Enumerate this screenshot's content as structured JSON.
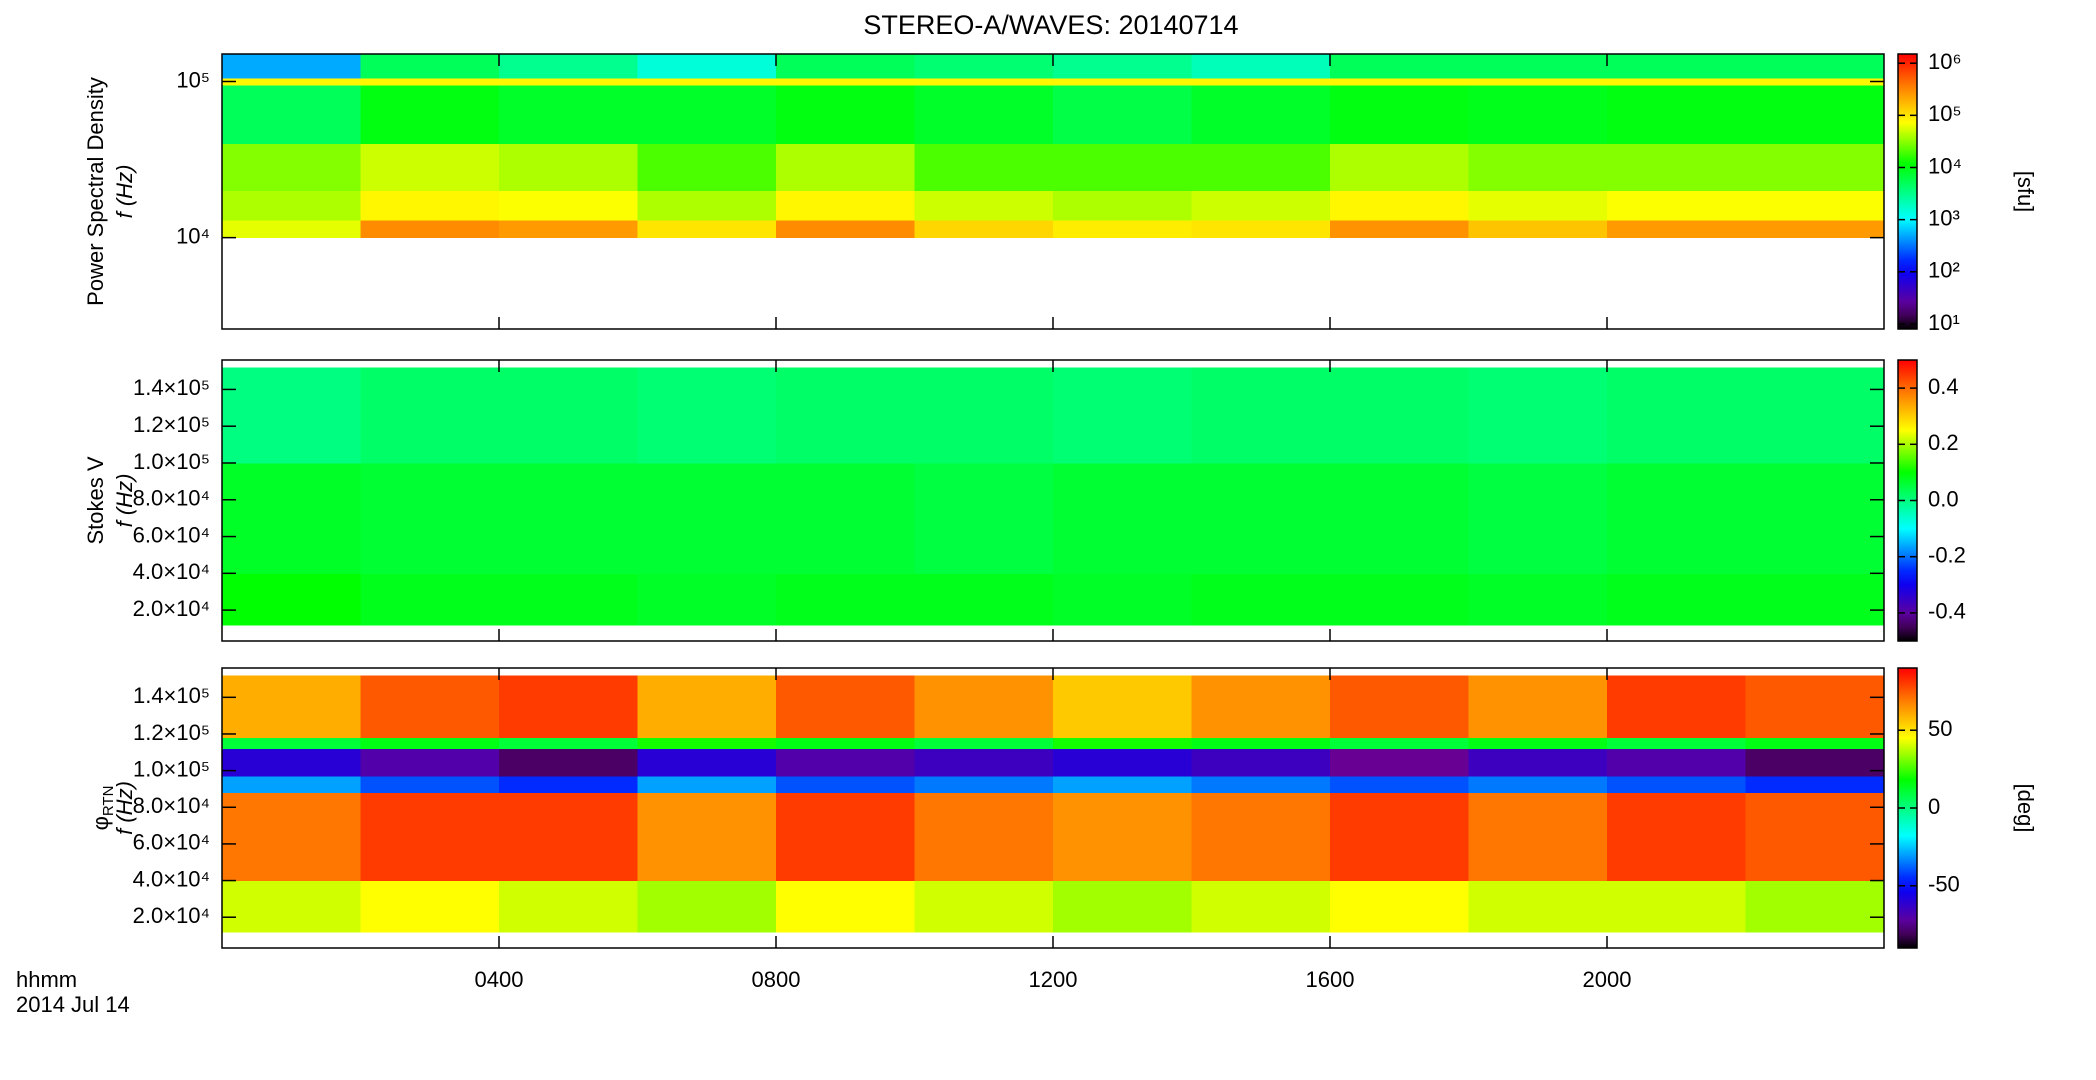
{
  "chart_data": [
    {
      "type": "heatmap",
      "title": "STEREO-A/WAVES: 20140714",
      "quantity": "Power Spectral Density",
      "ylabel": "f (Hz)",
      "yscale": "log",
      "ylim": [
        2600,
        150000
      ],
      "yticks": [
        {
          "value": 10000,
          "label": "10⁴"
        },
        {
          "value": 100000,
          "label": "10⁵"
        }
      ],
      "x_edges": [
        0,
        2,
        4,
        6,
        8,
        10,
        12,
        14,
        16,
        18,
        20,
        22,
        24
      ],
      "y_edges": [
        10000,
        13000,
        20000,
        40000,
        95000,
        105000,
        150000
      ],
      "z": [
        [
          60000,
          300000,
          250000,
          100000,
          300000,
          120000,
          90000,
          100000,
          280000,
          150000,
          250000,
          250000
        ],
        [
          40000,
          80000,
          70000,
          40000,
          80000,
          50000,
          40000,
          50000,
          80000,
          60000,
          70000,
          70000
        ],
        [
          30000,
          50000,
          40000,
          20000,
          40000,
          20000,
          20000,
          20000,
          40000,
          30000,
          30000,
          30000
        ],
        [
          5000,
          10000,
          8000,
          8000,
          10000,
          8000,
          6000,
          8000,
          10000,
          9000,
          10000,
          10000
        ],
        [
          80000,
          80000,
          80000,
          80000,
          80000,
          80000,
          80000,
          80000,
          80000,
          80000,
          80000,
          80000
        ],
        [
          500,
          5000,
          3000,
          1500,
          5000,
          4000,
          3000,
          2000,
          5000,
          5000,
          5000,
          5000
        ]
      ],
      "zscale": "log",
      "zlim": [
        8,
        1500000
      ],
      "zticks": [
        {
          "value": 10,
          "label": "10¹"
        },
        {
          "value": 100,
          "label": "10²"
        },
        {
          "value": 1000,
          "label": "10³"
        },
        {
          "value": 10000,
          "label": "10⁴"
        },
        {
          "value": 100000,
          "label": "10⁵"
        },
        {
          "value": 1000000,
          "label": "10⁶"
        }
      ],
      "zlabel": "[sfu]",
      "colormap": "rainbow"
    },
    {
      "type": "heatmap",
      "quantity": "Stokes V",
      "ylabel": "f (Hz)",
      "yscale": "linear",
      "ylim": [
        3200,
        156000
      ],
      "yticks": [
        {
          "value": 20000,
          "label": "2.0×10⁴"
        },
        {
          "value": 40000,
          "label": "4.0×10⁴"
        },
        {
          "value": 60000,
          "label": "6.0×10⁴"
        },
        {
          "value": 80000,
          "label": "8.0×10⁴"
        },
        {
          "value": 100000,
          "label": "1.0×10⁵"
        },
        {
          "value": 120000,
          "label": "1.2×10⁵"
        },
        {
          "value": 140000,
          "label": "1.4×10⁵"
        }
      ],
      "x_edges": [
        0,
        2,
        4,
        6,
        8,
        10,
        12,
        14,
        16,
        18,
        20,
        22,
        24
      ],
      "y_edges": [
        12000,
        40000,
        100000,
        152000
      ],
      "z": [
        [
          0.1,
          0.08,
          0.08,
          0.07,
          0.08,
          0.08,
          0.07,
          0.08,
          0.08,
          0.07,
          0.08,
          0.08
        ],
        [
          0.07,
          0.06,
          0.06,
          0.06,
          0.06,
          0.05,
          0.06,
          0.06,
          0.06,
          0.05,
          0.06,
          0.06
        ],
        [
          0.0,
          0.02,
          0.02,
          0.01,
          0.02,
          0.02,
          0.01,
          0.02,
          0.02,
          0.01,
          0.02,
          0.02
        ]
      ],
      "zscale": "linear",
      "zlim": [
        -0.5,
        0.5
      ],
      "zticks": [
        -0.4,
        -0.2,
        {
          "value": 0,
          "label": "0.0"
        },
        0.2,
        0.4
      ],
      "colormap": "rainbow"
    },
    {
      "type": "heatmap",
      "quantity": "φ",
      "quantity_subscript": "RTN",
      "ylabel": "f (Hz)",
      "yscale": "linear",
      "ylim": [
        3200,
        156000
      ],
      "yticks": [
        {
          "value": 20000,
          "label": "2.0×10⁴"
        },
        {
          "value": 40000,
          "label": "4.0×10⁴"
        },
        {
          "value": 60000,
          "label": "6.0×10⁴"
        },
        {
          "value": 80000,
          "label": "8.0×10⁴"
        },
        {
          "value": 100000,
          "label": "1.0×10⁵"
        },
        {
          "value": 120000,
          "label": "1.2×10⁵"
        },
        {
          "value": 140000,
          "label": "1.4×10⁵"
        }
      ],
      "xlim": [
        0,
        24
      ],
      "xticks": [
        {
          "value": 4,
          "label": "0400"
        },
        {
          "value": 8,
          "label": "0800"
        },
        {
          "value": 12,
          "label": "1200"
        },
        {
          "value": 16,
          "label": "1600"
        },
        {
          "value": 20,
          "label": "2000"
        }
      ],
      "xlabel": "hhmm",
      "date": "2014 Jul 14",
      "x_edges": [
        0,
        2,
        4,
        6,
        8,
        10,
        12,
        14,
        16,
        18,
        20,
        22,
        24
      ],
      "y_edges": [
        12000,
        40000,
        88000,
        97000,
        112000,
        118000,
        152000
      ],
      "z": [
        [
          40,
          45,
          40,
          35,
          45,
          40,
          35,
          40,
          45,
          40,
          40,
          35
        ],
        [
          70,
          80,
          80,
          65,
          80,
          70,
          65,
          70,
          80,
          70,
          80,
          75
        ],
        [
          -30,
          -40,
          -45,
          -30,
          -40,
          -35,
          -30,
          -35,
          -40,
          -35,
          -40,
          -45
        ],
        [
          -60,
          -70,
          -80,
          -60,
          -70,
          -65,
          -60,
          -65,
          -75,
          -65,
          -70,
          -80
        ],
        [
          10,
          15,
          10,
          20,
          15,
          10,
          20,
          15,
          10,
          15,
          10,
          15
        ],
        [
          60,
          75,
          80,
          60,
          75,
          65,
          55,
          65,
          75,
          65,
          80,
          75
        ]
      ],
      "zscale": "linear",
      "zlim": [
        -90,
        90
      ],
      "zticks": [
        -50,
        0,
        50
      ],
      "zlabel": "[deg]",
      "colormap": "rainbow"
    }
  ]
}
